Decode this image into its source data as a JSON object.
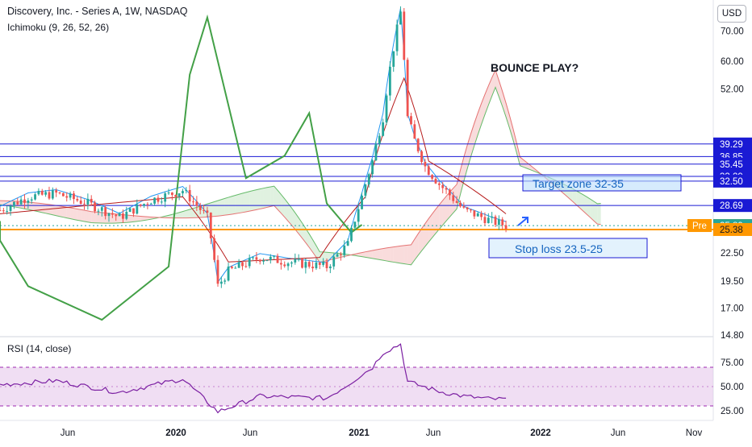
{
  "header": {
    "title": "Discovery, Inc. - Series A, 1W, NASDAQ",
    "indicator": "Ichimoku (9, 26, 52, 26)",
    "rsi_label": "RSI (14, close)",
    "currency_button": "USD"
  },
  "colors": {
    "candle_up": "#26a69a",
    "candle_down": "#ef5350",
    "lagging_span": "#43a047",
    "rsi_line": "#7b1fa2",
    "level_lines": "#1a1ad4",
    "stop_line": "#ff9800",
    "cloud_bull": "#a5d6a7",
    "cloud_bear": "#ef9a9a"
  },
  "annotations": {
    "bounce": "BOUNCE PLAY?",
    "target": "Target zone 32-35",
    "stop": "Stop loss 23.5-25"
  },
  "price_axis": {
    "ticks": [
      "70.00",
      "60.00",
      "52.00",
      "22.50",
      "19.50",
      "17.00",
      "14.80"
    ],
    "badges": [
      {
        "text": "39.29",
        "kind": "level"
      },
      {
        "text": "36.85",
        "kind": "level"
      },
      {
        "text": "35.45",
        "kind": "level"
      },
      {
        "text": "33.29",
        "kind": "level"
      },
      {
        "text": "32.50",
        "kind": "level"
      },
      {
        "text": "28.69",
        "kind": "level"
      },
      {
        "text": "25.90",
        "kind": "pre",
        "tag": "Pre"
      },
      {
        "text": "25.89",
        "kind": "last"
      },
      {
        "text": "25.38",
        "kind": "stop"
      }
    ]
  },
  "rsi_axis": {
    "ticks": [
      "75.00",
      "50.00",
      "25.00"
    ]
  },
  "time_axis": {
    "labels": [
      "Jun",
      "2020",
      "Jun",
      "2021",
      "Jun",
      "2022",
      "Jun",
      "Nov"
    ]
  },
  "chart_data": {
    "type": "candlestick",
    "ylabel": "",
    "y_scale": "log",
    "x_range": [
      "2019-01-07",
      "2022-11-28"
    ],
    "y_range": [
      14.8,
      82
    ],
    "series": [
      {
        "name": "price",
        "anchors": [
          [
            "2019-01-07",
            28.0
          ],
          [
            "2019-03-04",
            30.0
          ],
          [
            "2019-04-29",
            30.5
          ],
          [
            "2019-07-01",
            29.0
          ],
          [
            "2019-09-02",
            27.0
          ],
          [
            "2019-11-04",
            29.5
          ],
          [
            "2020-01-06",
            31.0
          ],
          [
            "2020-02-24",
            27.0
          ],
          [
            "2020-03-16",
            19.0
          ],
          [
            "2020-04-06",
            20.5
          ],
          [
            "2020-06-08",
            22.0
          ],
          [
            "2020-08-03",
            21.5
          ],
          [
            "2020-10-19",
            21.0
          ],
          [
            "2020-11-30",
            23.5
          ],
          [
            "2020-12-28",
            30.0
          ],
          [
            "2021-01-18",
            36.0
          ],
          [
            "2021-02-08",
            45.0
          ],
          [
            "2021-03-15",
            77.0
          ],
          [
            "2021-03-29",
            45.0
          ],
          [
            "2021-04-12",
            40.0
          ],
          [
            "2021-05-03",
            35.0
          ],
          [
            "2021-05-31",
            32.0
          ],
          [
            "2021-07-19",
            28.0
          ],
          [
            "2021-09-13",
            26.5
          ],
          [
            "2021-10-11",
            25.9
          ]
        ]
      }
    ],
    "ichimoku": {
      "conversion_base": [
        [
          "2019-01-07",
          27.5
        ],
        [
          "2020-01-06",
          30.0
        ],
        [
          "2020-04-06",
          21.5
        ],
        [
          "2020-10-05",
          22.0
        ],
        [
          "2021-01-04",
          30.0
        ],
        [
          "2021-03-22",
          55.0
        ],
        [
          "2021-05-10",
          36.0
        ],
        [
          "2021-10-11",
          27.5
        ]
      ],
      "lagging_span": [
        [
          "2018-07-09",
          26.5
        ],
        [
          "2018-12-03",
          24.0
        ],
        [
          "2019-03-04",
          19.0
        ],
        [
          "2019-07-29",
          16.0
        ],
        [
          "2019-12-09",
          21.0
        ],
        [
          "2020-01-20",
          56.0
        ],
        [
          "2020-02-24",
          75.0
        ],
        [
          "2020-05-11",
          33.0
        ],
        [
          "2020-07-27",
          37.0
        ],
        [
          "2020-09-14",
          46.0
        ],
        [
          "2020-10-19",
          29.0
        ],
        [
          "2020-12-07",
          25.0
        ],
        [
          "2020-12-28",
          26.0
        ]
      ],
      "cloud_end": "2022-04-18"
    },
    "levels": [
      39.29,
      36.85,
      35.45,
      33.29,
      32.5,
      28.69,
      25.38
    ],
    "rsi": {
      "range": [
        15,
        100
      ],
      "band": [
        30,
        70
      ],
      "points": [
        [
          "2019-01-07",
          52
        ],
        [
          "2019-04-29",
          56
        ],
        [
          "2019-09-02",
          44
        ],
        [
          "2020-01-06",
          58
        ],
        [
          "2020-03-16",
          24
        ],
        [
          "2020-06-08",
          40
        ],
        [
          "2020-10-19",
          38
        ],
        [
          "2020-11-30",
          52
        ],
        [
          "2021-01-18",
          70
        ],
        [
          "2021-02-08",
          85
        ],
        [
          "2021-03-15",
          94
        ],
        [
          "2021-03-29",
          55
        ],
        [
          "2021-05-31",
          45
        ],
        [
          "2021-07-19",
          40
        ],
        [
          "2021-09-13",
          37
        ],
        [
          "2021-10-11",
          37
        ]
      ]
    }
  }
}
